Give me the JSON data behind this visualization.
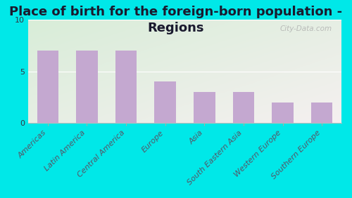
{
  "title": "Place of birth for the foreign-born population -\nRegions",
  "categories": [
    "Americas",
    "Latin America",
    "Central America",
    "Europe",
    "Asia",
    "South Eastern Asia",
    "Western Europe",
    "Southern Europe"
  ],
  "values": [
    7.0,
    7.0,
    7.0,
    4.0,
    3.0,
    3.0,
    2.0,
    2.0
  ],
  "bar_color": "#c4a8d0",
  "background_outer": "#00e8e8",
  "background_plot_top_left": "#d8edd8",
  "background_plot_bottom_right": "#f5f0f0",
  "ylim": [
    0,
    10
  ],
  "yticks": [
    0,
    5,
    10
  ],
  "title_fontsize": 13,
  "tick_fontsize": 8,
  "watermark": "City-Data.com",
  "title_color": "#1a1a2e"
}
